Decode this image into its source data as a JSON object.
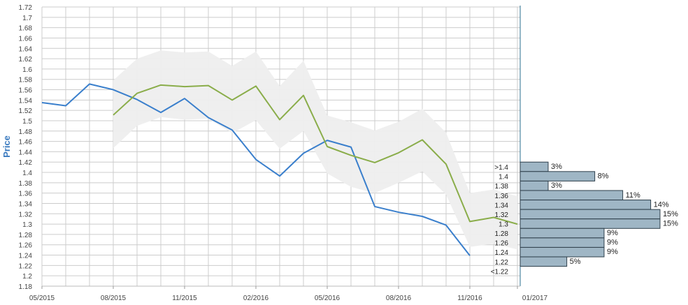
{
  "chart_data": {
    "type": "line",
    "ylabel": "Price",
    "ylim": [
      1.18,
      1.72
    ],
    "y_ticks": [
      "1.18",
      "1.2",
      "1.22",
      "1.24",
      "1.26",
      "1.28",
      "1.3",
      "1.32",
      "1.34",
      "1.36",
      "1.38",
      "1.4",
      "1.42",
      "1.44",
      "1.46",
      "1.48",
      "1.5",
      "1.52",
      "1.54",
      "1.56",
      "1.58",
      "1.6",
      "1.62",
      "1.64",
      "1.66",
      "1.68",
      "1.7",
      "1.72"
    ],
    "x_tick_labels": [
      "05/2015",
      "08/2015",
      "11/2015",
      "02/2016",
      "05/2016",
      "08/2016",
      "11/2016",
      "01/2017"
    ],
    "grid": true,
    "colors": {
      "actual": "#3a7fcc",
      "forecast": "#8aad4a",
      "band": "#eeeeee",
      "histogram": "#9fb6c5",
      "axis": "#2a6f8f",
      "grid": "#cccccc"
    },
    "series": [
      {
        "x": [
          0,
          1,
          2,
          3,
          4,
          5,
          6,
          7,
          8,
          9,
          10,
          11,
          12,
          13,
          14,
          15,
          16,
          17,
          18
        ],
        "values": [
          1.535,
          1.529,
          1.571,
          1.56,
          1.541,
          1.516,
          1.543,
          1.506,
          1.482,
          1.425,
          1.393,
          1.437,
          1.462,
          1.449,
          1.334,
          1.323,
          1.315,
          1.298,
          1.239
        ]
      },
      {
        "x": [
          3,
          4,
          5,
          6,
          7,
          8,
          9,
          10,
          11,
          12,
          13,
          14,
          15,
          16,
          17,
          18,
          19,
          20
        ],
        "values": [
          1.511,
          1.553,
          1.569,
          1.566,
          1.568,
          1.54,
          1.567,
          1.502,
          1.549,
          1.45,
          1.433,
          1.419,
          1.438,
          1.463,
          1.416,
          1.305,
          1.313,
          1.3
        ],
        "band_low": [
          1.447,
          1.49,
          1.507,
          1.502,
          1.504,
          1.476,
          1.501,
          1.446,
          1.48,
          1.398,
          1.372,
          1.36,
          1.38,
          1.402,
          1.357,
          1.256,
          1.262,
          1.251
        ],
        "band_high": [
          1.578,
          1.62,
          1.636,
          1.632,
          1.634,
          1.606,
          1.634,
          1.567,
          1.616,
          1.51,
          1.497,
          1.481,
          1.498,
          1.523,
          1.477,
          1.36,
          1.367,
          1.354
        ]
      }
    ],
    "histogram": [
      {
        "label": "<1.22",
        "percent": 0,
        "text": ""
      },
      {
        "label": "1.22",
        "percent": 5,
        "text": "5%"
      },
      {
        "label": "1.24",
        "percent": 9,
        "text": "9%"
      },
      {
        "label": "1.26",
        "percent": 9,
        "text": "9%"
      },
      {
        "label": "1.28",
        "percent": 9,
        "text": "9%"
      },
      {
        "label": "1.3",
        "percent": 15,
        "text": "15%"
      },
      {
        "label": "1.32",
        "percent": 15,
        "text": "15%"
      },
      {
        "label": "1.34",
        "percent": 14,
        "text": "14%"
      },
      {
        "label": "1.36",
        "percent": 11,
        "text": "11%"
      },
      {
        "label": "1.38",
        "percent": 3,
        "text": "3%"
      },
      {
        "label": "1.4",
        "percent": 8,
        "text": "8%"
      },
      {
        "label": ">1.4",
        "percent": 3,
        "text": "3%"
      }
    ]
  }
}
